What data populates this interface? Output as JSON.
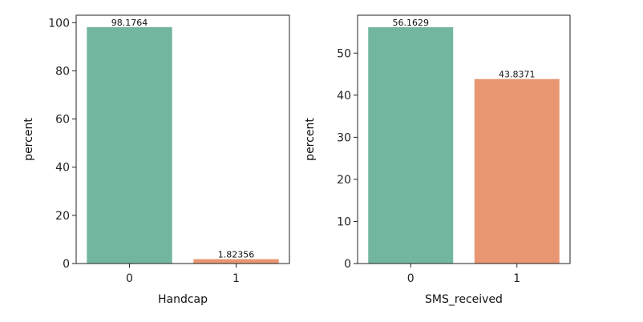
{
  "chart_data": [
    {
      "type": "bar",
      "categories": [
        "0",
        "1"
      ],
      "values": [
        98.1764,
        1.82356
      ],
      "value_labels": [
        "98.1764",
        "1.82356"
      ],
      "colors": [
        "#73b6a0",
        "#e99673"
      ],
      "xlabel": "Handcap",
      "ylabel": "percent",
      "ylim": [
        0,
        103.1
      ],
      "yticks": [
        0,
        20,
        40,
        60,
        80,
        100
      ],
      "grid": false
    },
    {
      "type": "bar",
      "categories": [
        "0",
        "1"
      ],
      "values": [
        56.1629,
        43.8371
      ],
      "value_labels": [
        "56.1629",
        "43.8371"
      ],
      "colors": [
        "#73b6a0",
        "#e99673"
      ],
      "xlabel": "SMS_received",
      "ylabel": "percent",
      "ylim": [
        0,
        59.0
      ],
      "yticks": [
        0,
        10,
        20,
        30,
        40,
        50
      ],
      "grid": false
    }
  ]
}
